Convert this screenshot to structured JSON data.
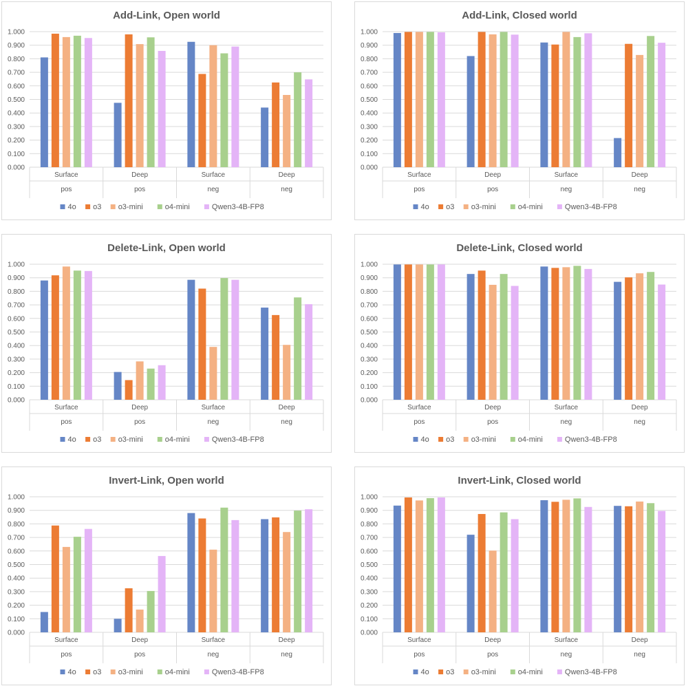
{
  "colors": {
    "4o": "#6586c6",
    "o3": "#ec7c34",
    "o3-mini": "#f4b183",
    "o4-mini": "#a8d08d",
    "Qwen3-4B-FP8": "#e4b4f7"
  },
  "chart_data": [
    {
      "type": "bar",
      "title": "Add-Link, Open world",
      "categories": [
        [
          "Surface",
          "pos"
        ],
        [
          "Deep",
          "pos"
        ],
        [
          "Surface",
          "neg"
        ],
        [
          "Deep",
          "neg"
        ]
      ],
      "series": [
        {
          "name": "4o",
          "values": [
            0.81,
            0.475,
            0.925,
            0.44
          ]
        },
        {
          "name": "o3",
          "values": [
            0.985,
            0.98,
            0.688,
            0.625
          ]
        },
        {
          "name": "o3-mini",
          "values": [
            0.96,
            0.908,
            0.9,
            0.533
          ]
        },
        {
          "name": "o4-mini",
          "values": [
            0.97,
            0.958,
            0.84,
            0.7
          ]
        },
        {
          "name": "Qwen3-4B-FP8",
          "values": [
            0.953,
            0.858,
            0.89,
            0.648
          ]
        }
      ],
      "ylim": [
        0,
        1
      ],
      "yticks": [
        "0.000",
        "0.100",
        "0.200",
        "0.300",
        "0.400",
        "0.500",
        "0.600",
        "0.700",
        "0.800",
        "0.900",
        "1.000"
      ],
      "legend": "bottom"
    },
    {
      "type": "bar",
      "title": "Add-Link, Closed world",
      "categories": [
        [
          "Surface",
          "pos"
        ],
        [
          "Deep",
          "pos"
        ],
        [
          "Surface",
          "neg"
        ],
        [
          "Deep",
          "neg"
        ]
      ],
      "series": [
        {
          "name": "4o",
          "values": [
            0.99,
            0.82,
            0.92,
            0.215
          ]
        },
        {
          "name": "o3",
          "values": [
            0.998,
            0.998,
            0.905,
            0.91
          ]
        },
        {
          "name": "o3-mini",
          "values": [
            0.998,
            0.98,
            0.998,
            0.828
          ]
        },
        {
          "name": "o4-mini",
          "values": [
            0.998,
            0.998,
            0.96,
            0.968
          ]
        },
        {
          "name": "Qwen3-4B-FP8",
          "values": [
            0.995,
            0.978,
            0.988,
            0.918
          ]
        }
      ],
      "ylim": [
        0,
        1
      ],
      "yticks": [
        "0.000",
        "0.100",
        "0.200",
        "0.300",
        "0.400",
        "0.500",
        "0.600",
        "0.700",
        "0.800",
        "0.900",
        "1.000"
      ],
      "legend": "bottom"
    },
    {
      "type": "bar",
      "title": "Delete-Link, Open world",
      "categories": [
        [
          "Surface",
          "pos"
        ],
        [
          "Deep",
          "pos"
        ],
        [
          "Surface",
          "neg"
        ],
        [
          "Deep",
          "neg"
        ]
      ],
      "series": [
        {
          "name": "4o",
          "values": [
            0.88,
            0.205,
            0.885,
            0.68
          ]
        },
        {
          "name": "o3",
          "values": [
            0.918,
            0.145,
            0.82,
            0.625
          ]
        },
        {
          "name": "o3-mini",
          "values": [
            0.983,
            0.283,
            0.39,
            0.405
          ]
        },
        {
          "name": "o4-mini",
          "values": [
            0.953,
            0.23,
            0.898,
            0.755
          ]
        },
        {
          "name": "Qwen3-4B-FP8",
          "values": [
            0.95,
            0.255,
            0.885,
            0.705
          ]
        }
      ],
      "ylim": [
        0,
        1
      ],
      "yticks": [
        "0.000",
        "0.100",
        "0.200",
        "0.300",
        "0.400",
        "0.500",
        "0.600",
        "0.700",
        "0.800",
        "0.900",
        "1.000"
      ],
      "legend": "bottom"
    },
    {
      "type": "bar",
      "title": "Delete-Link, Closed world",
      "categories": [
        [
          "Surface",
          "pos"
        ],
        [
          "Deep",
          "pos"
        ],
        [
          "Surface",
          "neg"
        ],
        [
          "Deep",
          "neg"
        ]
      ],
      "series": [
        {
          "name": "4o",
          "values": [
            0.998,
            0.928,
            0.983,
            0.87
          ]
        },
        {
          "name": "o3",
          "values": [
            0.998,
            0.953,
            0.973,
            0.903
          ]
        },
        {
          "name": "o3-mini",
          "values": [
            0.998,
            0.848,
            0.978,
            0.933
          ]
        },
        {
          "name": "o4-mini",
          "values": [
            0.998,
            0.928,
            0.988,
            0.943
          ]
        },
        {
          "name": "Qwen3-4B-FP8",
          "values": [
            0.998,
            0.84,
            0.965,
            0.85
          ]
        }
      ],
      "ylim": [
        0,
        1
      ],
      "yticks": [
        "0.000",
        "0.100",
        "0.200",
        "0.300",
        "0.400",
        "0.500",
        "0.600",
        "0.700",
        "0.800",
        "0.900",
        "1.000"
      ],
      "legend": "bottom"
    },
    {
      "type": "bar",
      "title": "Invert-Link, Open world",
      "categories": [
        [
          "Surface",
          "pos"
        ],
        [
          "Deep",
          "pos"
        ],
        [
          "Surface",
          "neg"
        ],
        [
          "Deep",
          "neg"
        ]
      ],
      "series": [
        {
          "name": "4o",
          "values": [
            0.15,
            0.1,
            0.88,
            0.835
          ]
        },
        {
          "name": "o3",
          "values": [
            0.788,
            0.325,
            0.84,
            0.848
          ]
        },
        {
          "name": "o3-mini",
          "values": [
            0.63,
            0.168,
            0.61,
            0.74
          ]
        },
        {
          "name": "o4-mini",
          "values": [
            0.705,
            0.305,
            0.92,
            0.898
          ]
        },
        {
          "name": "Qwen3-4B-FP8",
          "values": [
            0.763,
            0.563,
            0.828,
            0.908
          ]
        }
      ],
      "ylim": [
        0,
        1
      ],
      "yticks": [
        "0.000",
        "0.100",
        "0.200",
        "0.300",
        "0.400",
        "0.500",
        "0.600",
        "0.700",
        "0.800",
        "0.900",
        "1.000"
      ],
      "legend": "bottom"
    },
    {
      "type": "bar",
      "title": "Invert-Link, Closed world",
      "categories": [
        [
          "Surface",
          "pos"
        ],
        [
          "Deep",
          "pos"
        ],
        [
          "Surface",
          "neg"
        ],
        [
          "Deep",
          "neg"
        ]
      ],
      "series": [
        {
          "name": "4o",
          "values": [
            0.935,
            0.72,
            0.975,
            0.933
          ]
        },
        {
          "name": "o3",
          "values": [
            0.995,
            0.873,
            0.963,
            0.93
          ]
        },
        {
          "name": "o3-mini",
          "values": [
            0.973,
            0.603,
            0.978,
            0.965
          ]
        },
        {
          "name": "o4-mini",
          "values": [
            0.99,
            0.885,
            0.988,
            0.953
          ]
        },
        {
          "name": "Qwen3-4B-FP8",
          "values": [
            0.995,
            0.835,
            0.925,
            0.895
          ]
        }
      ],
      "ylim": [
        0,
        1
      ],
      "yticks": [
        "0.000",
        "0.100",
        "0.200",
        "0.300",
        "0.400",
        "0.500",
        "0.600",
        "0.700",
        "0.800",
        "0.900",
        "1.000"
      ],
      "legend": "bottom"
    }
  ]
}
